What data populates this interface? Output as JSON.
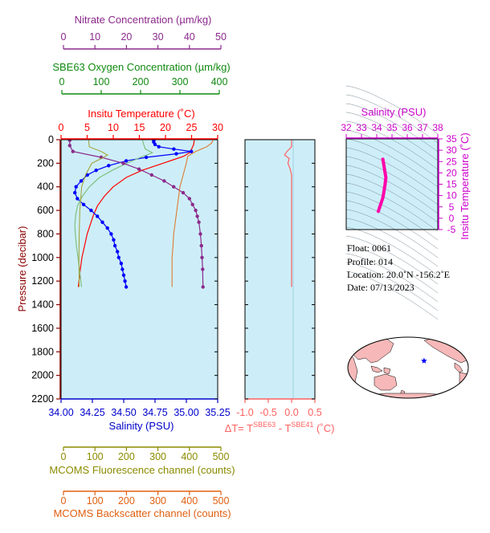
{
  "axes": {
    "nitrate": {
      "label": "Nitrate Concentration (µm/kg)",
      "range": [
        0,
        50
      ],
      "ticks": [
        "0",
        "10",
        "20",
        "30",
        "40",
        "50"
      ],
      "color": "#8b2a8b"
    },
    "oxygen": {
      "label": "SBE63 Oxygen Concentration (µm/kg)",
      "range": [
        0,
        400
      ],
      "ticks": [
        "0",
        "100",
        "200",
        "300",
        "400"
      ],
      "color": "#118a11"
    },
    "temperature": {
      "label": "Insitu Temperature (˚C)",
      "range": [
        0,
        30
      ],
      "ticks": [
        "0",
        "5",
        "10",
        "15",
        "20",
        "25",
        "30"
      ],
      "color": "#ff0000"
    },
    "salinity": {
      "label": "Salinity (PSU)",
      "range": [
        34.0,
        35.25
      ],
      "ticks": [
        "34.00",
        "34.25",
        "34.50",
        "34.75",
        "35.00",
        "35.25"
      ],
      "color": "#0000cc"
    },
    "pressure": {
      "label": "Pressure (decibar)",
      "range": [
        0,
        2200
      ],
      "ticks": [
        "0",
        "200",
        "400",
        "600",
        "800",
        "1000",
        "1200",
        "1400",
        "1600",
        "1800",
        "2000",
        "2200"
      ],
      "color": "#8b0000"
    },
    "fluorescence": {
      "label": "MCOMS Fluorescence channel (counts)",
      "range": [
        0,
        500
      ],
      "ticks": [
        "0",
        "100",
        "200",
        "300",
        "400",
        "500"
      ],
      "color": "#8b8b00"
    },
    "backscatter": {
      "label": "MCOMS Backscatter channel (counts)",
      "range": [
        0,
        500
      ],
      "ticks": [
        "0",
        "100",
        "200",
        "300",
        "400",
        "500"
      ],
      "color": "#e06010"
    },
    "delta_t": {
      "label_prefix": "ΔT= T",
      "sup1": "SBE63",
      "label_mid": " - T",
      "sup2": "SBE41",
      "label_suffix": " (˚C)",
      "range": [
        -1.0,
        0.5
      ],
      "ticks": [
        "-1.0",
        "-0.5",
        "0.0",
        "0.5"
      ],
      "color": "#ff6060"
    },
    "ts_salinity": {
      "label": "Salinity (PSU)",
      "range": [
        32,
        38
      ],
      "ticks": [
        "32",
        "33",
        "34",
        "35",
        "36",
        "37",
        "38"
      ],
      "color": "#cc00cc"
    },
    "ts_temperature": {
      "label": "Insitu Temperature (˚C)",
      "range": [
        -5,
        35
      ],
      "ticks": [
        "-5",
        "0",
        "5",
        "10",
        "15",
        "20",
        "25",
        "30",
        "35"
      ],
      "color": "#cc00cc"
    }
  },
  "info": {
    "float": "Float:  0061",
    "profile": "Profile:  014",
    "location": "Location:  20.0˚N  -156.2˚E",
    "date": "Date:  07/13/2023"
  },
  "colors": {
    "panel_bg": "#cdeef8",
    "temperature": "#ff0000",
    "salinity": "#0000ff",
    "oxygen": "#80c080",
    "nitrate": "#8b2a8b",
    "fluorescence": "#a0a030",
    "backscatter": "#e07020",
    "delta_t": "#ff6060",
    "ts_curve": "#ff00aa",
    "map_land": "#f6b8b8",
    "map_ocean": "#ffffff",
    "marker": "#0000ff"
  },
  "chart_data": {
    "type": "line",
    "profiles": [
      {
        "name": "temperature",
        "axis": "temperature",
        "pressure": [
          5,
          40,
          80,
          110,
          140,
          170,
          200,
          260,
          320,
          400,
          480,
          560,
          640,
          720,
          800,
          900,
          1000,
          1100,
          1250
        ],
        "values": [
          25.5,
          25.4,
          25.0,
          24.6,
          23.5,
          21.5,
          19.5,
          15.5,
          12.5,
          10.0,
          8.3,
          7.0,
          6.2,
          5.6,
          5.0,
          4.5,
          4.0,
          3.7,
          3.3
        ]
      },
      {
        "name": "salinity",
        "axis": "salinity",
        "pressure": [
          5,
          20,
          40,
          60,
          80,
          100,
          120,
          150,
          180,
          220,
          260,
          300,
          350,
          400,
          450,
          500,
          550,
          600,
          650,
          700,
          750,
          800,
          850,
          900,
          950,
          1000,
          1050,
          1100,
          1150,
          1200,
          1250
        ],
        "values": [
          34.74,
          34.74,
          34.75,
          34.78,
          34.9,
          35.04,
          34.92,
          34.68,
          34.52,
          34.38,
          34.28,
          34.21,
          34.16,
          34.12,
          34.11,
          34.13,
          34.18,
          34.24,
          34.29,
          34.33,
          34.37,
          34.4,
          34.42,
          34.43,
          34.45,
          34.46,
          34.48,
          34.49,
          34.5,
          34.51,
          34.52
        ]
      },
      {
        "name": "oxygen",
        "axis": "oxygen",
        "pressure": [
          5,
          40,
          80,
          110,
          150,
          200,
          260,
          320,
          400,
          480,
          560,
          640,
          720,
          800,
          900,
          1000,
          1100,
          1250
        ],
        "values": [
          205,
          208,
          212,
          230,
          200,
          165,
          128,
          96,
          70,
          52,
          40,
          35,
          33,
          34,
          37,
          41,
          45,
          50
        ]
      },
      {
        "name": "nitrate",
        "axis": "nitrate",
        "pressure": [
          5,
          50,
          100,
          150,
          200,
          250,
          300,
          350,
          400,
          450,
          500,
          550,
          600,
          650,
          700,
          800,
          900,
          1000,
          1100,
          1250
        ],
        "values": [
          2,
          2,
          3,
          12,
          19,
          24,
          28,
          32,
          35,
          38,
          40,
          41,
          42,
          42.5,
          43,
          43.5,
          43.8,
          44,
          44.2,
          44.3
        ]
      },
      {
        "name": "fluorescence",
        "axis": "fluorescence",
        "pressure": [
          5,
          60,
          100,
          130,
          160,
          200,
          300,
          400,
          600,
          800,
          1000,
          1250
        ],
        "values": [
          80,
          82,
          120,
          140,
          120,
          90,
          70,
          58,
          52,
          50,
          49,
          50
        ]
      },
      {
        "name": "backscatter",
        "axis": "backscatter",
        "pressure": [
          5,
          30,
          60,
          100,
          140,
          200,
          300,
          400,
          500,
          600,
          700,
          800,
          900,
          1000,
          1100,
          1250
        ],
        "values": [
          475,
          470,
          455,
          420,
          395,
          390,
          380,
          370,
          365,
          360,
          355,
          350,
          348,
          345,
          345,
          345
        ]
      },
      {
        "name": "delta_t",
        "axis": "delta_t",
        "pressure": [
          5,
          60,
          100,
          130,
          160,
          200,
          250,
          300,
          400,
          500,
          600,
          800,
          1000,
          1250
        ],
        "values": [
          0.0,
          0.0,
          -0.1,
          -0.15,
          -0.05,
          -0.08,
          -0.03,
          0.0,
          0.0,
          0.0,
          0.0,
          0.0,
          0.0,
          0.0
        ]
      }
    ],
    "ts_curve": {
      "salinity": [
        34.1,
        34.2,
        34.3,
        34.4,
        34.45,
        34.5,
        34.55,
        34.6,
        34.55,
        34.5,
        34.45,
        34.4
      ],
      "temperature": [
        3,
        5,
        7,
        9,
        11,
        13,
        15,
        18,
        20,
        22,
        24,
        26
      ]
    },
    "marker": {
      "lat": 20.0,
      "lon": -156.2
    }
  }
}
